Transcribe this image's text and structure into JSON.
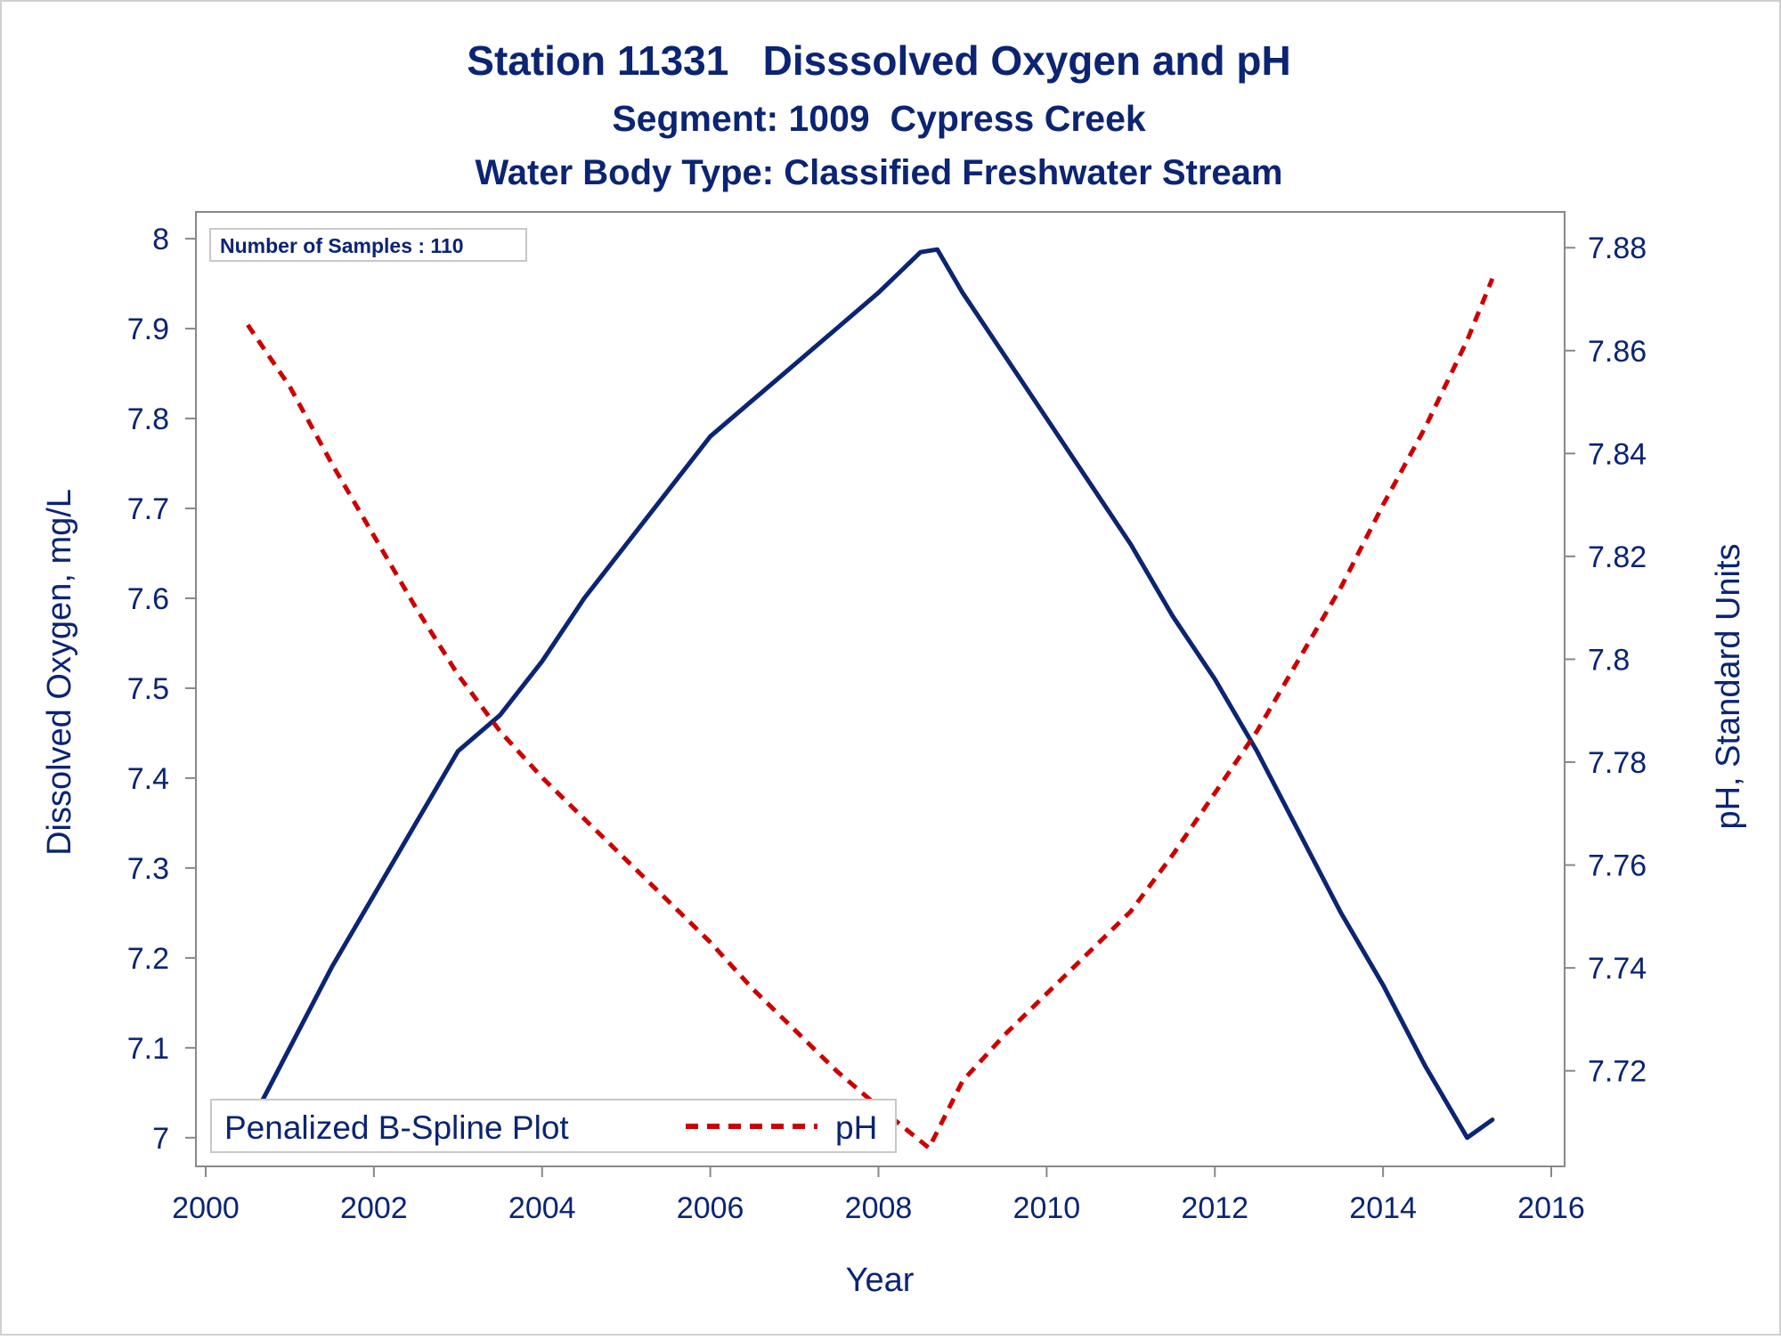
{
  "chart_data": {
    "type": "line",
    "title": "Station 11331   Disssolved Oxygen and pH",
    "subtitle": "Segment: 1009  Cypress Creek",
    "subtitle2": "Water Body Type: Classified Freshwater Stream",
    "xlabel": "Year",
    "ylabel": "Dissolved Oxygen, mg/L",
    "y2label": "pH, Standard Units",
    "annotation": "Number of Samples : 110",
    "legend_title": "Penalized B-Spline Plot",
    "legend_placement": "bottom-left",
    "grid": false,
    "xlim": [
      2000,
      2016
    ],
    "ylim": [
      6.98,
      8.01
    ],
    "y2lim": [
      7.7035,
      7.8835
    ],
    "x_ticks": [
      2000,
      2002,
      2004,
      2006,
      2008,
      2010,
      2012,
      2014,
      2016
    ],
    "y_ticks": [
      7,
      7.1,
      7.2,
      7.3,
      7.4,
      7.5,
      7.6,
      7.7,
      7.8,
      7.9,
      8
    ],
    "y2_ticks": [
      7.72,
      7.74,
      7.76,
      7.78,
      7.8,
      7.82,
      7.84,
      7.86,
      7.88
    ],
    "series": [
      {
        "axis": "left",
        "color": "#0b2473",
        "dash": "solid",
        "x": [
          2000.5,
          2001.0,
          2001.5,
          2002.0,
          2002.5,
          2003.0,
          2003.5,
          2004.0,
          2004.5,
          2005.0,
          2005.5,
          2006.0,
          2006.5,
          2007.0,
          2007.5,
          2008.0,
          2008.5,
          2008.7,
          2009.0,
          2009.5,
          2010.0,
          2010.5,
          2011.0,
          2011.5,
          2012.0,
          2012.5,
          2013.0,
          2013.5,
          2014.0,
          2014.5,
          2015.0,
          2015.3
        ],
        "values": [
          7.01,
          7.1,
          7.19,
          7.27,
          7.35,
          7.43,
          7.47,
          7.53,
          7.6,
          7.66,
          7.72,
          7.78,
          7.82,
          7.86,
          7.9,
          7.94,
          7.985,
          7.988,
          7.94,
          7.87,
          7.8,
          7.73,
          7.66,
          7.58,
          7.51,
          7.43,
          7.34,
          7.25,
          7.17,
          7.08,
          7.0,
          7.02
        ]
      },
      {
        "name": "pH",
        "axis": "right",
        "color": "#cc0000",
        "dash": "dashed",
        "x": [
          2000.5,
          2001.0,
          2001.5,
          2002.0,
          2002.5,
          2003.0,
          2003.5,
          2004.0,
          2004.5,
          2005.0,
          2005.5,
          2006.0,
          2006.5,
          2007.0,
          2007.5,
          2008.0,
          2008.6,
          2009.0,
          2009.5,
          2010.0,
          2010.5,
          2011.0,
          2011.5,
          2012.0,
          2012.5,
          2013.0,
          2013.5,
          2014.0,
          2014.5,
          2015.0,
          2015.3
        ],
        "values": [
          7.865,
          7.853,
          7.838,
          7.824,
          7.81,
          7.797,
          7.786,
          7.777,
          7.769,
          7.761,
          7.753,
          7.745,
          7.736,
          7.728,
          7.72,
          7.713,
          7.705,
          7.718,
          7.727,
          7.735,
          7.743,
          7.751,
          7.762,
          7.774,
          7.786,
          7.8,
          7.814,
          7.83,
          7.845,
          7.862,
          7.874
        ]
      }
    ]
  }
}
